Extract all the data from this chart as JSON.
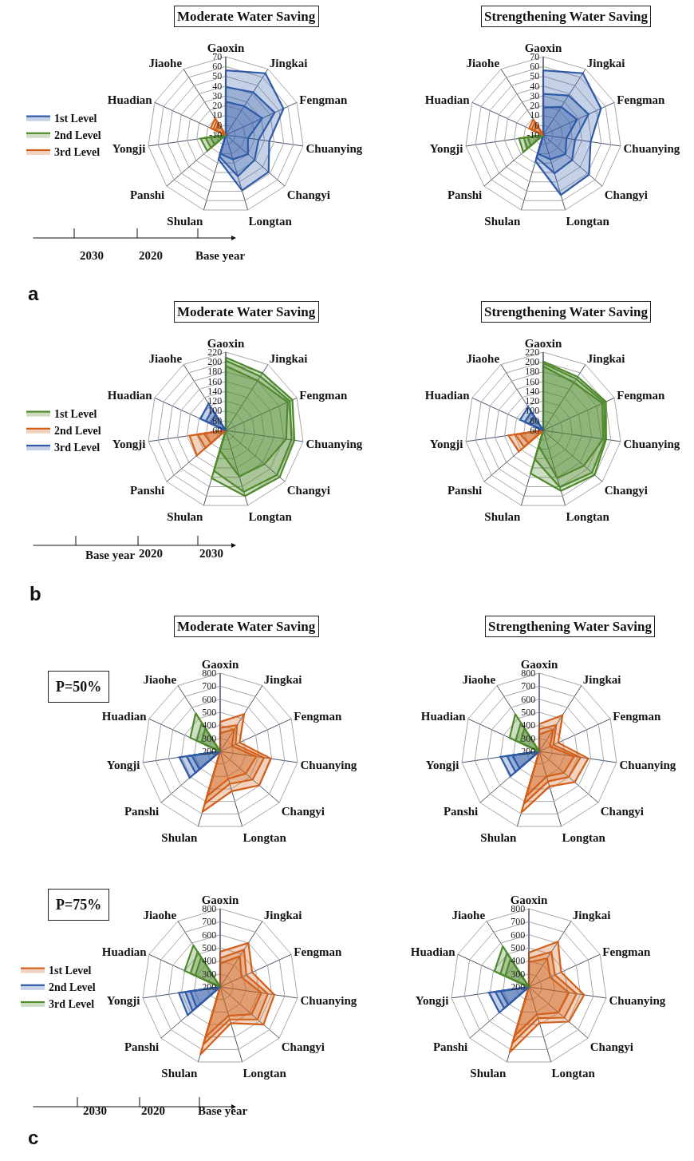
{
  "chart_data": [
    {
      "type": "radar",
      "title": "Moderate Water Saving",
      "categories": [
        "Gaoxin",
        "Jingkai",
        "Fengman",
        "Chuanying",
        "Changyi",
        "Longtan",
        "Shulan",
        "Panshi",
        "Yongji",
        "Huadian",
        "Jiaohe"
      ],
      "ylim": [
        -10,
        70
      ],
      "yticks": [
        -10,
        0,
        10,
        20,
        30,
        40,
        50,
        60,
        70
      ],
      "grid": true,
      "legend": "left",
      "annotations": [
        "2030",
        "2020",
        "Base year",
        "a"
      ],
      "series": [
        {
          "name": "1st Level",
          "color": "#2e5aa8",
          "values": [
            56,
            65,
            55,
            35,
            48,
            49,
            16,
            -10,
            -10,
            -10,
            -10
          ]
        },
        {
          "color": "#2e5aa8",
          "values": [
            39,
            42,
            45,
            24,
            29,
            34,
            13,
            -10,
            -10,
            -10,
            -10
          ]
        },
        {
          "color": "#2e5aa8",
          "values": [
            24,
            25,
            31,
            13,
            20,
            16,
            10,
            -10,
            -10,
            -10,
            -10
          ]
        },
        {
          "name": "2nd Level",
          "color": "#4f8a2c",
          "values": [
            -10,
            -10,
            -10,
            -10,
            -10,
            -10,
            -10,
            15,
            16,
            -10,
            -10
          ]
        },
        {
          "color": "#4f8a2c",
          "values": [
            -10,
            -10,
            -10,
            -10,
            -10,
            -10,
            -10,
            10,
            11,
            -10,
            -10
          ]
        },
        {
          "color": "#4f8a2c",
          "values": [
            -10,
            -10,
            -10,
            -10,
            -10,
            -10,
            -10,
            5,
            6,
            -10,
            -10
          ]
        },
        {
          "name": "3rd Level",
          "color": "#d2601a",
          "values": [
            -10,
            -10,
            -10,
            -10,
            -10,
            -10,
            -10,
            -10,
            -10,
            7,
            10
          ]
        },
        {
          "color": "#d2601a",
          "values": [
            -10,
            -10,
            -10,
            -10,
            -10,
            -10,
            -10,
            -10,
            -10,
            4,
            7
          ]
        },
        {
          "color": "#d2601a",
          "values": [
            -10,
            -10,
            -10,
            -10,
            -10,
            -10,
            -10,
            -10,
            -10,
            1,
            4
          ]
        }
      ]
    },
    {
      "type": "radar",
      "title": "Strengthening Water Saving",
      "categories": [
        "Gaoxin",
        "Jingkai",
        "Fengman",
        "Chuanying",
        "Changyi",
        "Longtan",
        "Shulan",
        "Panshi",
        "Yongji",
        "Huadian",
        "Jiaohe"
      ],
      "ylim": [
        -10,
        70
      ],
      "yticks": [
        -10,
        0,
        10,
        20,
        30,
        40,
        50,
        60,
        70
      ],
      "grid": true,
      "series": [
        {
          "color": "#2e5aa8",
          "values": [
            56,
            65,
            55,
            39,
            52,
            54,
            18,
            -10,
            -10,
            -10,
            -10
          ]
        },
        {
          "color": "#2e5aa8",
          "values": [
            32,
            38,
            41,
            23,
            29,
            31,
            14,
            -10,
            -10,
            -10,
            -10
          ]
        },
        {
          "color": "#2e5aa8",
          "values": [
            18,
            24,
            28,
            14,
            20,
            16,
            10,
            -10,
            -10,
            -10,
            -10
          ]
        },
        {
          "color": "#4f8a2c",
          "values": [
            -10,
            -10,
            -10,
            -10,
            -10,
            -10,
            -10,
            17,
            15,
            -10,
            -10
          ]
        },
        {
          "color": "#4f8a2c",
          "values": [
            -10,
            -10,
            -10,
            -10,
            -10,
            -10,
            -10,
            12,
            10,
            -10,
            -10
          ]
        },
        {
          "color": "#4f8a2c",
          "values": [
            -10,
            -10,
            -10,
            -10,
            -10,
            -10,
            -10,
            7,
            6,
            -10,
            -10
          ]
        },
        {
          "color": "#d2601a",
          "values": [
            -10,
            -10,
            -10,
            -10,
            -10,
            -10,
            -10,
            -10,
            -10,
            6,
            9
          ]
        },
        {
          "color": "#d2601a",
          "values": [
            -10,
            -10,
            -10,
            -10,
            -10,
            -10,
            -10,
            -10,
            -10,
            3,
            6
          ]
        },
        {
          "color": "#d2601a",
          "values": [
            -10,
            -10,
            -10,
            -10,
            -10,
            -10,
            -10,
            -10,
            -10,
            0,
            3
          ]
        }
      ]
    },
    {
      "type": "radar",
      "title": "Moderate Water Saving",
      "categories": [
        "Gaoxin",
        "Jingkai",
        "Fengman",
        "Chuanying",
        "Changyi",
        "Longtan",
        "Shulan",
        "Panshi",
        "Yongji",
        "Huadian",
        "Jiaohe"
      ],
      "ylim": [
        60,
        220
      ],
      "yticks": [
        60,
        80,
        100,
        120,
        140,
        160,
        180,
        200,
        220
      ],
      "grid": true,
      "legend": "left",
      "annotations": [
        "Base year",
        "2020",
        "2030",
        "b"
      ],
      "series": [
        {
          "name": "1st Level",
          "color": "#4f8a2c",
          "values": [
            209,
            199,
            210,
            202,
            206,
            200,
            162,
            60,
            60,
            60,
            60
          ]
        },
        {
          "color": "#4f8a2c",
          "values": [
            203,
            191,
            204,
            196,
            199,
            191,
            146,
            60,
            60,
            60,
            60
          ]
        },
        {
          "color": "#4f8a2c",
          "values": [
            192,
            181,
            199,
            185,
            165,
            158,
            103,
            60,
            60,
            60,
            60
          ]
        },
        {
          "name": "2nd Level",
          "color": "#d2601a",
          "values": [
            60,
            60,
            60,
            60,
            60,
            60,
            60,
            138,
            135,
            60,
            60
          ]
        },
        {
          "color": "#d2601a",
          "values": [
            60,
            60,
            60,
            60,
            60,
            60,
            60,
            115,
            118,
            60,
            60
          ]
        },
        {
          "color": "#d2601a",
          "values": [
            60,
            60,
            60,
            60,
            60,
            60,
            60,
            100,
            105,
            60,
            60
          ]
        },
        {
          "name": "3rd Level",
          "color": "#2e5aa8",
          "values": [
            60,
            60,
            60,
            60,
            60,
            60,
            60,
            60,
            60,
            117,
            125
          ]
        },
        {
          "color": "#2e5aa8",
          "values": [
            60,
            60,
            60,
            60,
            60,
            60,
            60,
            60,
            60,
            105,
            110
          ]
        },
        {
          "color": "#2e5aa8",
          "values": [
            60,
            60,
            60,
            60,
            60,
            60,
            60,
            60,
            60,
            95,
            98
          ]
        }
      ]
    },
    {
      "type": "radar",
      "title": "Strengthening Water Saving",
      "categories": [
        "Gaoxin",
        "Jingkai",
        "Fengman",
        "Chuanying",
        "Changyi",
        "Longtan",
        "Shulan",
        "Panshi",
        "Yongji",
        "Huadian",
        "Jiaohe"
      ],
      "ylim": [
        60,
        220
      ],
      "yticks": [
        60,
        80,
        100,
        120,
        140,
        160,
        180,
        200,
        220
      ],
      "grid": true,
      "series": [
        {
          "color": "#4f8a2c",
          "values": [
            201,
            190,
            201,
            190,
            199,
            189,
            152,
            60,
            60,
            60,
            60
          ]
        },
        {
          "color": "#4f8a2c",
          "values": [
            197,
            185,
            197,
            188,
            192,
            181,
            121,
            60,
            60,
            60,
            60
          ]
        },
        {
          "color": "#4f8a2c",
          "values": [
            191,
            176,
            193,
            184,
            170,
            162,
            93,
            60,
            60,
            60,
            60
          ]
        },
        {
          "color": "#d2601a",
          "values": [
            60,
            60,
            60,
            60,
            60,
            60,
            60,
            126,
            132,
            60,
            60
          ]
        },
        {
          "color": "#d2601a",
          "values": [
            60,
            60,
            60,
            60,
            60,
            60,
            60,
            112,
            118,
            60,
            60
          ]
        },
        {
          "color": "#d2601a",
          "values": [
            60,
            60,
            60,
            60,
            60,
            60,
            60,
            100,
            108,
            60,
            60
          ]
        },
        {
          "color": "#2e5aa8",
          "values": [
            60,
            60,
            60,
            60,
            60,
            60,
            60,
            60,
            60,
            112,
            117
          ]
        },
        {
          "color": "#2e5aa8",
          "values": [
            60,
            60,
            60,
            60,
            60,
            60,
            60,
            60,
            60,
            102,
            105
          ]
        },
        {
          "color": "#2e5aa8",
          "values": [
            60,
            60,
            60,
            60,
            60,
            60,
            60,
            60,
            60,
            92,
            95
          ]
        }
      ]
    },
    {
      "type": "radar",
      "title": "Moderate Water Saving",
      "categories": [
        "Gaoxin",
        "Jingkai",
        "Fengman",
        "Chuanying",
        "Changyi",
        "Longtan",
        "Shulan",
        "Panshi",
        "Yongji",
        "Huadian",
        "Jiaohe"
      ],
      "ylim": [
        200,
        800
      ],
      "yticks": [
        200,
        300,
        400,
        500,
        600,
        700,
        800
      ],
      "grid": true,
      "annotations": [
        "P=50%"
      ],
      "series": [
        {
          "color": "#d2601a",
          "values": [
            426,
            540,
            364,
            592,
            597,
            518,
            684,
            200,
            200,
            200,
            200
          ]
        },
        {
          "color": "#d2601a",
          "values": [
            380,
            440,
            330,
            540,
            530,
            460,
            620,
            200,
            200,
            200,
            200
          ]
        },
        {
          "color": "#d2601a",
          "values": [
            340,
            400,
            300,
            480,
            460,
            420,
            560,
            200,
            200,
            200,
            200
          ]
        },
        {
          "color": "#2e5aa8",
          "values": [
            200,
            200,
            200,
            200,
            200,
            200,
            200,
            509,
            516,
            200,
            200
          ]
        },
        {
          "color": "#2e5aa8",
          "values": [
            200,
            200,
            200,
            200,
            200,
            200,
            200,
            450,
            460,
            200,
            200
          ]
        },
        {
          "color": "#2e5aa8",
          "values": [
            200,
            200,
            200,
            200,
            200,
            200,
            200,
            410,
            420,
            200,
            200
          ]
        },
        {
          "color": "#4f8a2c",
          "values": [
            200,
            200,
            200,
            200,
            200,
            200,
            200,
            200,
            200,
            452,
            548
          ]
        },
        {
          "color": "#4f8a2c",
          "values": [
            200,
            200,
            200,
            200,
            200,
            200,
            200,
            200,
            200,
            400,
            460
          ]
        },
        {
          "color": "#4f8a2c",
          "values": [
            200,
            200,
            200,
            200,
            200,
            200,
            200,
            200,
            200,
            360,
            410
          ]
        }
      ]
    },
    {
      "type": "radar",
      "title": "Strengthening Water Saving",
      "categories": [
        "Gaoxin",
        "Jingkai",
        "Fengman",
        "Chuanying",
        "Changyi",
        "Longtan",
        "Shulan",
        "Panshi",
        "Yongji",
        "Huadian",
        "Jiaohe"
      ],
      "ylim": [
        200,
        800
      ],
      "yticks": [
        200,
        300,
        400,
        500,
        600,
        700,
        800
      ],
      "grid": true,
      "series": [
        {
          "color": "#d2601a",
          "values": [
            410,
            530,
            360,
            580,
            560,
            480,
            690,
            200,
            200,
            200,
            200
          ]
        },
        {
          "color": "#d2601a",
          "values": [
            370,
            440,
            320,
            520,
            500,
            440,
            620,
            200,
            200,
            200,
            200
          ]
        },
        {
          "color": "#d2601a",
          "values": [
            330,
            400,
            290,
            470,
            450,
            400,
            560,
            200,
            200,
            200,
            200
          ]
        },
        {
          "color": "#2e5aa8",
          "values": [
            200,
            200,
            200,
            200,
            200,
            200,
            200,
            490,
            500,
            200,
            200
          ]
        },
        {
          "color": "#2e5aa8",
          "values": [
            200,
            200,
            200,
            200,
            200,
            200,
            200,
            440,
            450,
            200,
            200
          ]
        },
        {
          "color": "#2e5aa8",
          "values": [
            200,
            200,
            200,
            200,
            200,
            200,
            200,
            400,
            410,
            200,
            200
          ]
        },
        {
          "color": "#4f8a2c",
          "values": [
            200,
            200,
            200,
            200,
            200,
            200,
            200,
            200,
            200,
            450,
            540
          ]
        },
        {
          "color": "#4f8a2c",
          "values": [
            200,
            200,
            200,
            200,
            200,
            200,
            200,
            200,
            200,
            400,
            460
          ]
        },
        {
          "color": "#4f8a2c",
          "values": [
            200,
            200,
            200,
            200,
            200,
            200,
            200,
            200,
            200,
            360,
            410
          ]
        }
      ]
    },
    {
      "type": "radar",
      "categories": [
        "Gaoxin",
        "Jingkai",
        "Fengman",
        "Chuanying",
        "Changyi",
        "Longtan",
        "Shulan",
        "Panshi",
        "Yongji",
        "Huadian",
        "Jiaohe"
      ],
      "ylim": [
        200,
        800
      ],
      "yticks": [
        200,
        300,
        400,
        500,
        600,
        700,
        800
      ],
      "grid": true,
      "legend": "left",
      "annotations": [
        "P=75%",
        "2030",
        "2020",
        "Base year",
        "c"
      ],
      "series": [
        {
          "name": "1st Level",
          "color": "#d2601a",
          "values": [
            470,
            600,
            470,
            620,
            640,
            490,
            740,
            200,
            200,
            200,
            200
          ]
        },
        {
          "color": "#d2601a",
          "values": [
            420,
            540,
            420,
            570,
            580,
            460,
            660,
            200,
            200,
            200,
            200
          ]
        },
        {
          "color": "#d2601a",
          "values": [
            380,
            480,
            380,
            520,
            520,
            430,
            600,
            200,
            200,
            200,
            200
          ]
        },
        {
          "name": "2nd Level",
          "color": "#2e5aa8",
          "values": [
            200,
            200,
            200,
            200,
            200,
            200,
            200,
            530,
            520,
            200,
            200
          ]
        },
        {
          "color": "#2e5aa8",
          "values": [
            200,
            200,
            200,
            200,
            200,
            200,
            200,
            480,
            470,
            200,
            200
          ]
        },
        {
          "color": "#2e5aa8",
          "values": [
            200,
            200,
            200,
            200,
            200,
            200,
            200,
            440,
            430,
            200,
            200
          ]
        },
        {
          "name": "3rd Level",
          "color": "#4f8a2c",
          "values": [
            200,
            200,
            200,
            200,
            200,
            200,
            200,
            200,
            200,
            500,
            580
          ]
        },
        {
          "color": "#4f8a2c",
          "values": [
            200,
            200,
            200,
            200,
            200,
            200,
            200,
            200,
            200,
            450,
            520
          ]
        },
        {
          "color": "#4f8a2c",
          "values": [
            200,
            200,
            200,
            200,
            200,
            200,
            200,
            200,
            200,
            410,
            470
          ]
        }
      ]
    },
    {
      "type": "radar",
      "categories": [
        "Gaoxin",
        "Jingkai",
        "Fengman",
        "Chuanying",
        "Changyi",
        "Longtan",
        "Shulan",
        "Panshi",
        "Yongji",
        "Huadian",
        "Jiaohe"
      ],
      "ylim": [
        200,
        800
      ],
      "yticks": [
        200,
        300,
        400,
        500,
        600,
        700,
        800
      ],
      "grid": true,
      "series": [
        {
          "color": "#d2601a",
          "values": [
            463,
            613,
            472,
            628,
            607,
            487,
            723,
            200,
            200,
            200,
            200
          ]
        },
        {
          "color": "#d2601a",
          "values": [
            420,
            520,
            420,
            570,
            560,
            450,
            650,
            200,
            200,
            200,
            200
          ]
        },
        {
          "color": "#d2601a",
          "values": [
            390,
            460,
            380,
            510,
            500,
            420,
            590,
            200,
            200,
            200,
            200
          ]
        },
        {
          "color": "#2e5aa8",
          "values": [
            200,
            200,
            200,
            200,
            200,
            200,
            200,
            500,
            510,
            200,
            200
          ]
        },
        {
          "color": "#2e5aa8",
          "values": [
            200,
            200,
            200,
            200,
            200,
            200,
            200,
            450,
            460,
            200,
            200
          ]
        },
        {
          "color": "#2e5aa8",
          "values": [
            200,
            200,
            200,
            200,
            200,
            200,
            200,
            410,
            420,
            200,
            200
          ]
        },
        {
          "color": "#4f8a2c",
          "values": [
            200,
            200,
            200,
            200,
            200,
            200,
            200,
            200,
            200,
            490,
            570
          ]
        },
        {
          "color": "#4f8a2c",
          "values": [
            200,
            200,
            200,
            200,
            200,
            200,
            200,
            200,
            200,
            440,
            510
          ]
        },
        {
          "color": "#4f8a2c",
          "values": [
            200,
            200,
            200,
            200,
            200,
            200,
            200,
            200,
            200,
            400,
            460
          ]
        }
      ]
    }
  ]
}
